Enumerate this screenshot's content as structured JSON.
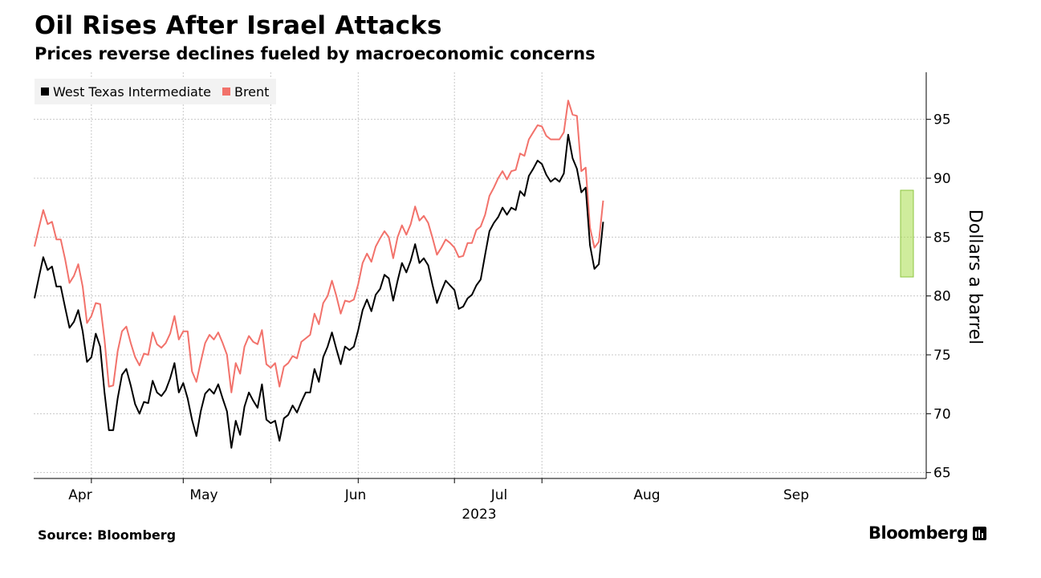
{
  "title": "Oil Rises After Israel Attacks",
  "subtitle": "Prices reverse declines fueled by macroeconomic concerns",
  "source": "Source: Bloomberg",
  "brand": "Bloomberg",
  "colors": {
    "wti": "#000000",
    "brent": "#f2726b",
    "highlight": "#a8dc4a",
    "grid": "#c8c8c8"
  },
  "chart_data": {
    "type": "line",
    "ylabel": "Dollars a barrel",
    "ylim": [
      64.5,
      99
    ],
    "yticks": [
      65,
      70,
      75,
      80,
      85,
      90,
      95
    ],
    "x_year_label": "2023",
    "x_tick_labels": [
      {
        "label": "Apr",
        "index": 0
      },
      {
        "label": "May",
        "index": 21
      },
      {
        "label": "Jun",
        "index": 42
      },
      {
        "label": "Jul",
        "index": 62
      },
      {
        "label": "Aug",
        "index": 83
      },
      {
        "label": "Sep",
        "index": 104
      }
    ],
    "month_starts": [
      13,
      34,
      54,
      74,
      96,
      116
    ],
    "legend_position": "top-left",
    "highlight_range": [
      119.5,
      121.5
    ],
    "series": [
      {
        "name": "West Texas Intermediate",
        "values": [
          79.8,
          81.6,
          83.3,
          82.2,
          82.5,
          80.8,
          80.8,
          79.0,
          77.3,
          77.8,
          78.8,
          77.0,
          74.4,
          74.8,
          76.8,
          75.7,
          71.8,
          68.6,
          68.6,
          71.3,
          73.3,
          73.8,
          72.4,
          70.8,
          70.0,
          71.0,
          70.9,
          72.8,
          71.8,
          71.5,
          72.0,
          73.0,
          74.3,
          71.8,
          72.6,
          71.3,
          69.5,
          68.1,
          70.2,
          71.7,
          72.1,
          71.7,
          72.5,
          71.3,
          70.2,
          67.1,
          69.4,
          68.2,
          70.6,
          71.8,
          71.1,
          70.5,
          72.5,
          69.5,
          69.2,
          69.4,
          67.7,
          69.6,
          69.9,
          70.7,
          70.1,
          71.0,
          71.8,
          71.8,
          73.8,
          72.7,
          74.8,
          75.7,
          76.9,
          75.5,
          74.2,
          75.7,
          75.4,
          75.7,
          77.1,
          78.8,
          79.7,
          78.7,
          80.1,
          80.6,
          81.8,
          81.5,
          79.6,
          81.3,
          82.8,
          82.0,
          83.0,
          84.4,
          82.8,
          83.2,
          82.6,
          80.9,
          79.4,
          80.4,
          81.3,
          80.9,
          80.5,
          78.9,
          79.1,
          79.8,
          80.1,
          80.9,
          81.4,
          83.5,
          85.5,
          86.2,
          86.7,
          87.5,
          86.9,
          87.5,
          87.3,
          88.9,
          88.5,
          90.2,
          90.8,
          91.5,
          91.2,
          90.3,
          89.7,
          90.0,
          89.7,
          90.4,
          93.7,
          91.7,
          90.8,
          88.8,
          89.2,
          84.3,
          82.3,
          82.7,
          86.3
        ]
      },
      {
        "name": "Brent",
        "values": [
          84.2,
          85.8,
          87.3,
          86.1,
          86.3,
          84.8,
          84.8,
          83.1,
          81.1,
          81.7,
          82.7,
          80.8,
          77.7,
          78.3,
          79.4,
          79.3,
          76.3,
          72.3,
          72.4,
          75.3,
          77.0,
          77.4,
          76.0,
          74.8,
          74.1,
          75.1,
          75.0,
          76.9,
          75.9,
          75.6,
          76.0,
          76.8,
          78.3,
          76.3,
          77.0,
          77.0,
          73.6,
          72.7,
          74.4,
          76.0,
          76.7,
          76.3,
          76.9,
          76.0,
          75.0,
          71.8,
          74.3,
          73.4,
          75.7,
          76.6,
          76.1,
          75.9,
          77.1,
          74.2,
          73.9,
          74.3,
          72.3,
          74.0,
          74.3,
          74.9,
          74.7,
          76.1,
          76.4,
          76.7,
          78.5,
          77.6,
          79.4,
          80.0,
          81.3,
          80.0,
          78.5,
          79.6,
          79.5,
          79.7,
          81.0,
          82.8,
          83.6,
          82.9,
          84.2,
          84.9,
          85.5,
          85.0,
          83.2,
          85.0,
          86.0,
          85.2,
          86.1,
          87.6,
          86.4,
          86.8,
          86.2,
          84.9,
          83.5,
          84.1,
          84.8,
          84.5,
          84.1,
          83.3,
          83.4,
          84.5,
          84.5,
          85.6,
          85.9,
          86.9,
          88.5,
          89.2,
          90.0,
          90.6,
          89.9,
          90.6,
          90.7,
          92.1,
          91.9,
          93.3,
          93.9,
          94.5,
          94.4,
          93.6,
          93.3,
          93.3,
          93.3,
          93.9,
          96.6,
          95.4,
          95.3,
          90.6,
          90.9,
          85.8,
          84.1,
          84.6,
          88.1
        ]
      }
    ]
  }
}
